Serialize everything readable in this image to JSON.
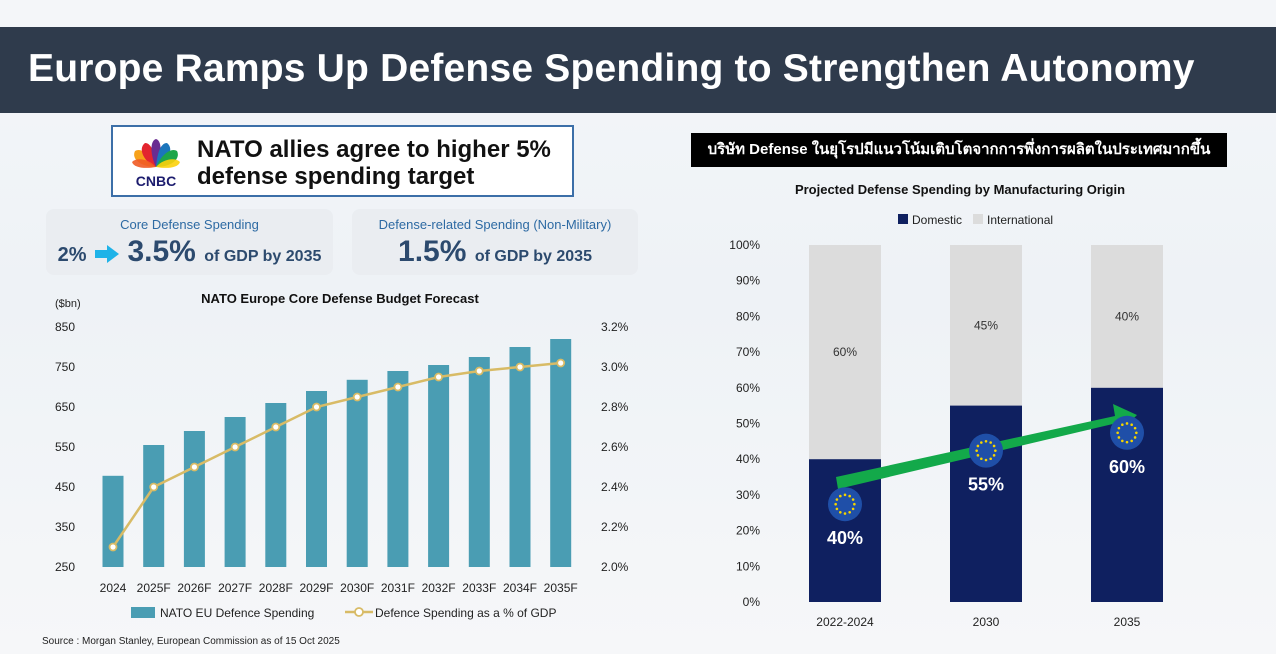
{
  "page_title": "Europe Ramps Up Defense Spending to Strengthen Autonomy",
  "cnbc": {
    "logo_text": "CNBC",
    "headline_line1": "NATO allies agree to higher 5%",
    "headline_line2": "defense spending target"
  },
  "core_card": {
    "label": "Core Defense Spending",
    "from": "2%",
    "value": "3.5%",
    "suffix": "of GDP by 2035"
  },
  "related_card": {
    "label": "Defense-related Spending (Non-Military)",
    "value": "1.5%",
    "suffix": "of GDP by 2035"
  },
  "right_badge": "บริษัท Defense ในยุโรปมีแนวโน้มเติบโตจากการพึ่งการผลิตในประเทศมากขึ้น",
  "source": "Source : Morgan Stanley, European Commission as of 15 Oct 2025",
  "colors": {
    "title_bg": "#2f3b4c",
    "bar_teal": "#4a9db3",
    "line_gold": "#d8bb66",
    "domestic_navy": "#0f2060",
    "international_gray": "#dcdcdc",
    "arrow_green": "#13a94a",
    "eu_star": "#f5d400",
    "eu_blue": "#1f4fa8"
  },
  "chart_data": [
    {
      "type": "bar",
      "title": "NATO Europe Core Defense Budget Forecast",
      "y_unit_label": "($bn)",
      "categories": [
        "2024",
        "2025F",
        "2026F",
        "2027F",
        "2028F",
        "2029F",
        "2030F",
        "2031F",
        "2032F",
        "2033F",
        "2034F",
        "2035F"
      ],
      "ylim": [
        250,
        850
      ],
      "yticks": [
        "850",
        "750",
        "650",
        "550",
        "450",
        "350",
        "250"
      ],
      "y2lim": [
        2.0,
        3.2
      ],
      "y2ticks": [
        "3.2%",
        "3.0%",
        "2.8%",
        "2.6%",
        "2.4%",
        "2.2%",
        "2.0%"
      ],
      "series": [
        {
          "name": "NATO EU Defence Spending",
          "kind": "bar",
          "axis": "left",
          "values": [
            478,
            555,
            590,
            625,
            660,
            690,
            718,
            740,
            755,
            775,
            800,
            820
          ]
        },
        {
          "name": "Defence Spending as a % of GDP",
          "kind": "line",
          "axis": "right",
          "values": [
            2.1,
            2.4,
            2.5,
            2.6,
            2.7,
            2.8,
            2.85,
            2.9,
            2.95,
            2.98,
            3.0,
            3.02
          ]
        }
      ]
    },
    {
      "type": "bar",
      "stacked": true,
      "title": "Projected Defense Spending by Manufacturing Origin",
      "categories": [
        "2022-2024",
        "2030",
        "2035"
      ],
      "ylim": [
        0,
        100
      ],
      "yticks": [
        "100%",
        "90%",
        "80%",
        "70%",
        "60%",
        "50%",
        "40%",
        "30%",
        "20%",
        "10%",
        "0%"
      ],
      "series": [
        {
          "name": "Domestic",
          "values": [
            40,
            55,
            60
          ],
          "labels": [
            "40%",
            "55%",
            "60%"
          ]
        },
        {
          "name": "International",
          "values": [
            60,
            45,
            40
          ],
          "labels": [
            "60%",
            "45%",
            "40%"
          ]
        }
      ]
    }
  ]
}
